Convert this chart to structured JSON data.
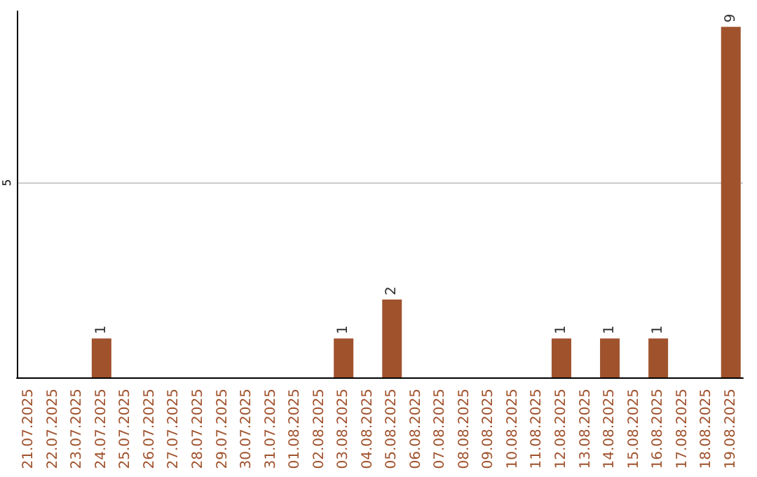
{
  "chart_data": {
    "type": "bar",
    "categories": [
      "21.07.2025",
      "22.07.2025",
      "23.07.2025",
      "24.07.2025",
      "25.07.2025",
      "26.07.2025",
      "27.07.2025",
      "28.07.2025",
      "29.07.2025",
      "30.07.2025",
      "31.07.2025",
      "01.08.2025",
      "02.08.2025",
      "03.08.2025",
      "04.08.2025",
      "05.08.2025",
      "06.08.2025",
      "07.08.2025",
      "08.08.2025",
      "09.08.2025",
      "10.08.2025",
      "11.08.2025",
      "12.08.2025",
      "13.08.2025",
      "14.08.2025",
      "15.08.2025",
      "16.08.2025",
      "17.08.2025",
      "18.08.2025",
      "19.08.2025"
    ],
    "values": [
      0,
      0,
      0,
      1,
      0,
      0,
      0,
      0,
      0,
      0,
      0,
      0,
      0,
      1,
      0,
      2,
      0,
      0,
      0,
      0,
      0,
      0,
      1,
      0,
      1,
      0,
      1,
      0,
      0,
      9
    ],
    "value_labels": [
      null,
      null,
      null,
      "1",
      null,
      null,
      null,
      null,
      null,
      null,
      null,
      null,
      null,
      "1",
      null,
      "2",
      null,
      null,
      null,
      null,
      null,
      null,
      "1",
      null,
      "1",
      null,
      "1",
      null,
      null,
      "9"
    ],
    "color": "#a0522d",
    "ylim": [
      0,
      9.4
    ],
    "yticks": [
      5
    ],
    "grid": "y"
  }
}
